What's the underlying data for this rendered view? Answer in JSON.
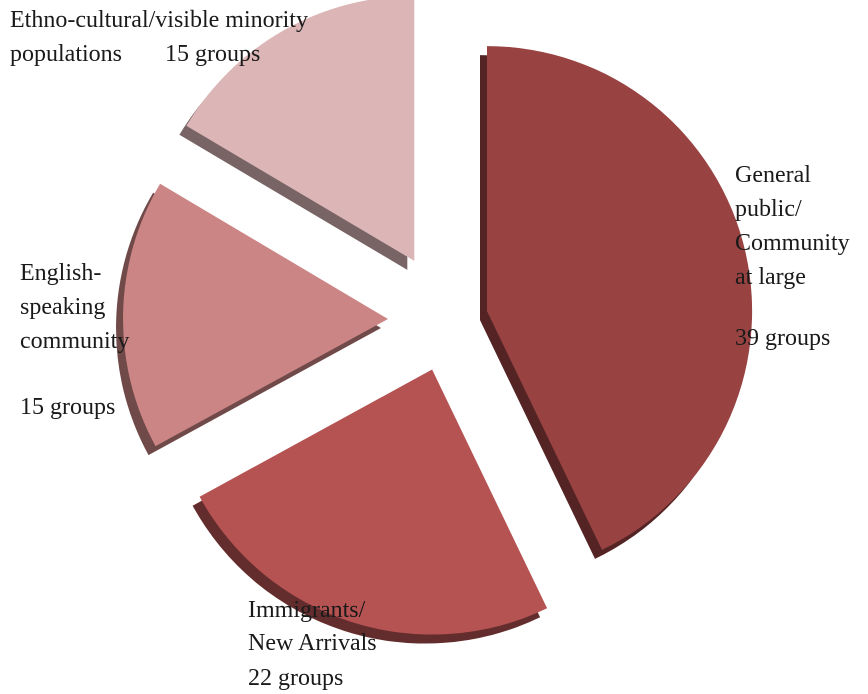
{
  "chart_data": {
    "type": "pie",
    "title": "",
    "legend": "none",
    "slices": [
      {
        "label_lines": [
          "General",
          "public/",
          "Community",
          "at large"
        ],
        "count_label": "39 groups",
        "value": 39,
        "color": "#984242"
      },
      {
        "label_lines": [
          "Immigrants/",
          "New Arrivals"
        ],
        "count_label": "22 groups",
        "value": 22,
        "color": "#b55252"
      },
      {
        "label_lines": [
          "English-",
          "speaking",
          "community"
        ],
        "count_label": "15 groups",
        "value": 15,
        "color": "#cc8585"
      },
      {
        "label_lines": [
          "Ethno-cultural/visible minority",
          "populations"
        ],
        "count_label": "15 groups",
        "value": 15,
        "color": "#dcb6b7"
      }
    ]
  }
}
